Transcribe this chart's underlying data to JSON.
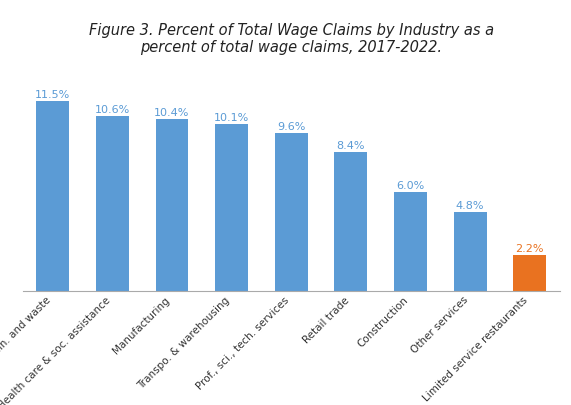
{
  "title": "Figure 3. Percent of Total Wage Claims by Industry as a\npercent of total wage claims, 2017-2022.",
  "categories": [
    "Admin. and waste",
    "Health care & soc. assistance",
    "Manufacturing",
    "Transpo. & warehousing",
    "Prof., sci., tech. services",
    "Retail trade",
    "Construction",
    "Other services",
    "Limited service restaurants"
  ],
  "values": [
    11.5,
    10.6,
    10.4,
    10.1,
    9.6,
    8.4,
    6.0,
    4.8,
    2.2
  ],
  "bar_colors": [
    "#5B9BD5",
    "#5B9BD5",
    "#5B9BD5",
    "#5B9BD5",
    "#5B9BD5",
    "#5B9BD5",
    "#5B9BD5",
    "#5B9BD5",
    "#E97220"
  ],
  "label_colors": [
    "#5B9BD5",
    "#5B9BD5",
    "#5B9BD5",
    "#5B9BD5",
    "#5B9BD5",
    "#5B9BD5",
    "#5B9BD5",
    "#5B9BD5",
    "#E97220"
  ],
  "background_color": "#FFFFFF",
  "plot_bg_color": "#FFFFFF",
  "ylim": [
    0,
    13.5
  ],
  "title_fontsize": 10.5,
  "label_fontsize": 8,
  "tick_fontsize": 7.5
}
